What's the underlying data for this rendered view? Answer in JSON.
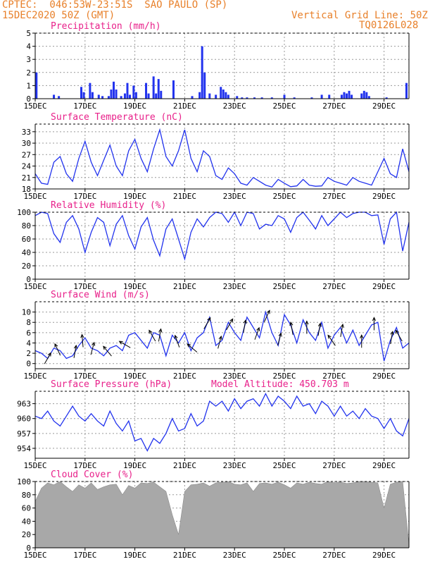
{
  "header": {
    "line1": "CPTEC:  046:53W-23:51S  SAO PAULO (SP)",
    "line2": "15DEC2020 50Z (GMT)",
    "vgrid": "Vertical Grid Line: 50Z",
    "code": "TQ0126L028"
  },
  "colors": {
    "header": "#e8802a",
    "title": "#e8208a",
    "line": "#2233ee",
    "cloud": "#a8a8a8",
    "arrow": "#000000"
  },
  "chart_data": [
    {
      "type": "bar",
      "title": "Precipitation (mm/h)",
      "unit": "mm/h",
      "ylim": [
        0,
        5
      ],
      "yticks": [
        0,
        1,
        2,
        3,
        4,
        5
      ],
      "xlim": [
        0,
        15
      ],
      "xticks": [
        0,
        2,
        4,
        6,
        8,
        10,
        12,
        14
      ],
      "xticklabels": [
        "15DEC",
        "17DEC",
        "19DEC",
        "21DEC",
        "23DEC",
        "25DEC",
        "27DEC",
        "29DEC"
      ],
      "bars": [
        [
          0.05,
          2.0
        ],
        [
          0.75,
          0.3
        ],
        [
          0.95,
          0.2
        ],
        [
          1.85,
          0.9
        ],
        [
          1.95,
          0.5
        ],
        [
          2.2,
          1.2
        ],
        [
          2.3,
          0.5
        ],
        [
          2.55,
          0.3
        ],
        [
          2.7,
          0.2
        ],
        [
          2.95,
          0.2
        ],
        [
          3.05,
          0.7
        ],
        [
          3.15,
          1.3
        ],
        [
          3.25,
          0.7
        ],
        [
          3.45,
          0.2
        ],
        [
          3.6,
          0.4
        ],
        [
          3.7,
          1.2
        ],
        [
          3.8,
          0.3
        ],
        [
          3.95,
          1.0
        ],
        [
          4.05,
          0.5
        ],
        [
          4.45,
          1.2
        ],
        [
          4.55,
          0.4
        ],
        [
          4.75,
          1.7
        ],
        [
          4.85,
          0.4
        ],
        [
          4.95,
          1.5
        ],
        [
          5.05,
          0.6
        ],
        [
          5.55,
          1.4
        ],
        [
          6.3,
          0.2
        ],
        [
          6.6,
          0.5
        ],
        [
          6.7,
          4.0
        ],
        [
          6.8,
          2.0
        ],
        [
          7.0,
          0.4
        ],
        [
          7.25,
          0.3
        ],
        [
          7.45,
          0.9
        ],
        [
          7.55,
          0.7
        ],
        [
          7.65,
          0.5
        ],
        [
          7.75,
          0.3
        ],
        [
          8.1,
          0.2
        ],
        [
          8.3,
          0.1
        ],
        [
          8.5,
          0.1
        ],
        [
          8.8,
          0.1
        ],
        [
          9.1,
          0.1
        ],
        [
          9.5,
          0.1
        ],
        [
          10.0,
          0.3
        ],
        [
          10.4,
          0.1
        ],
        [
          11.1,
          0.1
        ],
        [
          11.5,
          0.3
        ],
        [
          11.8,
          0.3
        ],
        [
          12.3,
          0.3
        ],
        [
          12.4,
          0.5
        ],
        [
          12.5,
          0.4
        ],
        [
          12.6,
          0.6
        ],
        [
          12.7,
          0.3
        ],
        [
          13.1,
          0.4
        ],
        [
          13.2,
          0.6
        ],
        [
          13.3,
          0.5
        ],
        [
          13.4,
          0.2
        ],
        [
          14.1,
          0.1
        ],
        [
          14.9,
          1.2
        ]
      ]
    },
    {
      "type": "line",
      "title": "Surface Temperature (nC)",
      "unit": "nC",
      "ylim": [
        18,
        35
      ],
      "yticks": [
        18,
        21,
        24,
        27,
        30,
        33
      ],
      "xlim": [
        0,
        15
      ],
      "xticks": [
        0,
        2,
        4,
        6,
        8,
        10,
        12,
        14
      ],
      "xticklabels": [
        "15DEC",
        "17DEC",
        "19DEC",
        "21DEC",
        "23DEC",
        "25DEC",
        "27DEC",
        "29DEC"
      ],
      "x": [
        0,
        0.25,
        0.5,
        0.75,
        1.0,
        1.25,
        1.5,
        1.75,
        2.0,
        2.25,
        2.5,
        2.75,
        3.0,
        3.25,
        3.5,
        3.75,
        4.0,
        4.25,
        4.5,
        4.75,
        5.0,
        5.25,
        5.5,
        5.75,
        6.0,
        6.25,
        6.5,
        6.75,
        7.0,
        7.25,
        7.5,
        7.75,
        8.0,
        8.25,
        8.5,
        8.75,
        9.0,
        9.25,
        9.5,
        9.75,
        10.0,
        10.25,
        10.5,
        10.75,
        11.0,
        11.25,
        11.5,
        11.75,
        12.0,
        12.25,
        12.5,
        12.75,
        13.0,
        13.25,
        13.5,
        13.75,
        14.0,
        14.25,
        14.5,
        14.75,
        15.0
      ],
      "values": [
        22.0,
        19.5,
        19.2,
        25.0,
        26.5,
        22.0,
        20.0,
        26.0,
        30.5,
        25.0,
        21.5,
        25.5,
        29.5,
        24.0,
        21.5,
        28.0,
        31.0,
        26.0,
        22.5,
        28.5,
        33.5,
        26.5,
        24.0,
        28.0,
        33.5,
        26.0,
        22.5,
        28.0,
        26.5,
        21.5,
        20.5,
        23.5,
        22.0,
        19.5,
        19.0,
        21.0,
        20.0,
        19.0,
        18.5,
        20.5,
        19.5,
        18.6,
        18.8,
        20.5,
        19.0,
        18.7,
        18.8,
        21.0,
        20.0,
        19.5,
        19.0,
        21.0,
        20.0,
        19.5,
        19.0,
        22.5,
        26.0,
        22.0,
        21.0,
        28.5,
        22.5
      ]
    },
    {
      "type": "line",
      "title": "Relative Humidity (%)",
      "unit": "%",
      "ylim": [
        0,
        100
      ],
      "yticks": [
        0,
        20,
        40,
        60,
        80,
        100
      ],
      "xlim": [
        0,
        15
      ],
      "xticks": [
        0,
        2,
        4,
        6,
        8,
        10,
        12,
        14
      ],
      "xticklabels": [
        "15DEC",
        "17DEC",
        "19DEC",
        "21DEC",
        "23DEC",
        "25DEC",
        "27DEC",
        "29DEC"
      ],
      "x": [
        0,
        0.25,
        0.5,
        0.75,
        1.0,
        1.25,
        1.5,
        1.75,
        2.0,
        2.25,
        2.5,
        2.75,
        3.0,
        3.25,
        3.5,
        3.75,
        4.0,
        4.25,
        4.5,
        4.75,
        5.0,
        5.25,
        5.5,
        5.75,
        6.0,
        6.25,
        6.5,
        6.75,
        7.0,
        7.25,
        7.5,
        7.75,
        8.0,
        8.25,
        8.5,
        8.75,
        9.0,
        9.25,
        9.5,
        9.75,
        10.0,
        10.25,
        10.5,
        10.75,
        11.0,
        11.25,
        11.5,
        11.75,
        12.0,
        12.25,
        12.5,
        12.75,
        13.0,
        13.25,
        13.5,
        13.75,
        14.0,
        14.25,
        14.5,
        14.75,
        15.0
      ],
      "values": [
        95,
        100,
        98,
        68,
        55,
        85,
        95,
        75,
        40,
        70,
        92,
        85,
        50,
        82,
        95,
        65,
        45,
        78,
        92,
        58,
        35,
        75,
        90,
        60,
        30,
        70,
        90,
        78,
        92,
        100,
        98,
        85,
        100,
        80,
        100,
        98,
        75,
        82,
        80,
        95,
        90,
        70,
        92,
        100,
        88,
        75,
        95,
        80,
        90,
        100,
        92,
        98,
        100,
        100,
        95,
        96,
        52,
        90,
        100,
        42,
        85
      ]
    },
    {
      "type": "line",
      "title": "Surface Wind (m/s)",
      "unit": "m/s",
      "ylim": [
        -1,
        12
      ],
      "yticks": [
        0,
        2,
        4,
        6,
        8,
        10
      ],
      "xlim": [
        0,
        15
      ],
      "xticks": [
        0,
        2,
        4,
        6,
        8,
        10,
        12,
        14
      ],
      "xticklabels": [
        "15DEC",
        "17DEC",
        "19DEC",
        "21DEC",
        "23DEC",
        "25DEC",
        "27DEC",
        "29DEC"
      ],
      "x": [
        0,
        0.25,
        0.5,
        0.75,
        1.0,
        1.25,
        1.5,
        1.75,
        2.0,
        2.25,
        2.5,
        2.75,
        3.0,
        3.25,
        3.5,
        3.75,
        4.0,
        4.25,
        4.5,
        4.75,
        5.0,
        5.25,
        5.5,
        5.75,
        6.0,
        6.25,
        6.5,
        6.75,
        7.0,
        7.25,
        7.5,
        7.75,
        8.0,
        8.25,
        8.5,
        8.75,
        9.0,
        9.25,
        9.5,
        9.75,
        10.0,
        10.25,
        10.5,
        10.75,
        11.0,
        11.25,
        11.5,
        11.75,
        12.0,
        12.25,
        12.5,
        12.75,
        13.0,
        13.25,
        13.5,
        13.75,
        14.0,
        14.25,
        14.5,
        14.75,
        15.0
      ],
      "values": [
        2.5,
        2.0,
        1.0,
        3.0,
        2.5,
        1.0,
        1.5,
        3.5,
        5.0,
        3.0,
        2.5,
        1.5,
        3.0,
        3.5,
        2.5,
        5.5,
        6.0,
        4.5,
        3.0,
        6.0,
        5.5,
        1.5,
        5.5,
        4.0,
        6.0,
        2.5,
        5.0,
        6.0,
        9.0,
        3.5,
        4.5,
        8.0,
        6.0,
        4.5,
        9.0,
        7.0,
        5.0,
        10.0,
        6.0,
        3.5,
        9.5,
        7.5,
        4.0,
        8.5,
        6.0,
        4.5,
        8.0,
        3.0,
        5.5,
        7.0,
        4.0,
        6.5,
        3.5,
        5.5,
        7.5,
        8.0,
        0.5,
        4.5,
        7.0,
        3.0,
        4.0
      ],
      "arrows": [
        [
          0.5,
          60
        ],
        [
          0.9,
          115
        ],
        [
          1.6,
          80
        ],
        [
          1.9,
          95
        ],
        [
          2.3,
          75
        ],
        [
          2.9,
          130
        ],
        [
          3.6,
          150
        ],
        [
          4.7,
          120
        ],
        [
          5.0,
          80
        ],
        [
          5.7,
          110
        ],
        [
          6.3,
          140
        ],
        [
          6.9,
          60
        ],
        [
          7.4,
          75
        ],
        [
          7.8,
          60
        ],
        [
          8.4,
          80
        ],
        [
          8.9,
          70
        ],
        [
          9.3,
          65
        ],
        [
          9.8,
          75
        ],
        [
          10.3,
          100
        ],
        [
          10.9,
          90
        ],
        [
          11.4,
          80
        ],
        [
          11.9,
          125
        ],
        [
          12.3,
          80
        ],
        [
          13.1,
          90
        ],
        [
          13.6,
          90
        ],
        [
          14.3,
          80
        ],
        [
          14.6,
          120
        ]
      ]
    },
    {
      "type": "line",
      "title": "Surface Pressure (hPa)",
      "subtitle": "Model Altitude: 450.703 m",
      "unit": "hPa",
      "ylim": [
        952,
        965.5
      ],
      "yticks": [
        954,
        957,
        960,
        963
      ],
      "xlim": [
        0,
        15
      ],
      "xticks": [
        0,
        2,
        4,
        6,
        8,
        10,
        12,
        14
      ],
      "xticklabels": [
        "15DEC",
        "17DEC",
        "19DEC",
        "21DEC",
        "23DEC",
        "25DEC",
        "27DEC",
        "29DEC"
      ],
      "x": [
        0,
        0.25,
        0.5,
        0.75,
        1.0,
        1.25,
        1.5,
        1.75,
        2.0,
        2.25,
        2.5,
        2.75,
        3.0,
        3.25,
        3.5,
        3.75,
        4.0,
        4.25,
        4.5,
        4.75,
        5.0,
        5.25,
        5.5,
        5.75,
        6.0,
        6.25,
        6.5,
        6.75,
        7.0,
        7.25,
        7.5,
        7.75,
        8.0,
        8.25,
        8.5,
        8.75,
        9.0,
        9.25,
        9.5,
        9.75,
        10.0,
        10.25,
        10.5,
        10.75,
        11.0,
        11.25,
        11.5,
        11.75,
        12.0,
        12.25,
        12.5,
        12.75,
        13.0,
        13.25,
        13.5,
        13.75,
        14.0,
        14.25,
        14.5,
        14.75,
        15.0
      ],
      "values": [
        960.5,
        960,
        961.5,
        959.5,
        958.5,
        960.5,
        962.5,
        960.5,
        959.5,
        961.0,
        959.5,
        958.5,
        961.5,
        959.0,
        957.5,
        959.5,
        955.5,
        956.0,
        953.5,
        956.0,
        955.0,
        957.0,
        960.0,
        957.5,
        958.0,
        961.0,
        958.5,
        959.5,
        963.5,
        962.5,
        963.5,
        961.5,
        964.0,
        962.0,
        963.5,
        964.0,
        962.5,
        965.0,
        962.5,
        964.5,
        963.5,
        962.0,
        964.5,
        962.5,
        963.0,
        961.0,
        963.5,
        962.5,
        960.5,
        962.5,
        960.5,
        961.5,
        960.0,
        962.0,
        960.5,
        960.0,
        958.0,
        960.0,
        957.5,
        956.5,
        960.0
      ]
    },
    {
      "type": "area",
      "title": "Cloud Cover (%)",
      "unit": "%",
      "ylim": [
        0,
        100
      ],
      "yticks": [
        0,
        20,
        40,
        60,
        80,
        100
      ],
      "xlim": [
        0,
        15
      ],
      "xticks": [
        0,
        2,
        4,
        6,
        8,
        10,
        12,
        14
      ],
      "xticklabels": [
        "15DEC",
        "17DEC",
        "19DEC",
        "21DEC",
        "23DEC",
        "25DEC",
        "27DEC",
        "29DEC"
      ],
      "x": [
        0,
        0.25,
        0.5,
        0.75,
        1.0,
        1.25,
        1.5,
        1.75,
        2.0,
        2.25,
        2.5,
        2.75,
        3.0,
        3.25,
        3.5,
        3.75,
        4.0,
        4.25,
        4.5,
        4.75,
        5.0,
        5.25,
        5.5,
        5.75,
        6.0,
        6.25,
        6.5,
        6.75,
        7.0,
        7.25,
        7.5,
        7.75,
        8.0,
        8.25,
        8.5,
        8.75,
        9.0,
        9.25,
        9.5,
        9.75,
        10.0,
        10.25,
        10.5,
        10.75,
        11.0,
        11.25,
        11.5,
        11.75,
        12.0,
        12.25,
        12.5,
        12.75,
        13.0,
        13.25,
        13.5,
        13.75,
        14.0,
        14.25,
        14.5,
        14.75,
        15.0
      ],
      "values": [
        70,
        90,
        98,
        95,
        100,
        92,
        85,
        95,
        90,
        98,
        88,
        92,
        95,
        96,
        80,
        94,
        90,
        98,
        97,
        99,
        92,
        85,
        50,
        20,
        85,
        95,
        96,
        98,
        93,
        98,
        99,
        100,
        96,
        95,
        98,
        85,
        97,
        98,
        96,
        99,
        95,
        90,
        98,
        96,
        99,
        97,
        96,
        100,
        98,
        99,
        97,
        98,
        100,
        100,
        99,
        98,
        60,
        96,
        99,
        100,
        5
      ]
    }
  ]
}
